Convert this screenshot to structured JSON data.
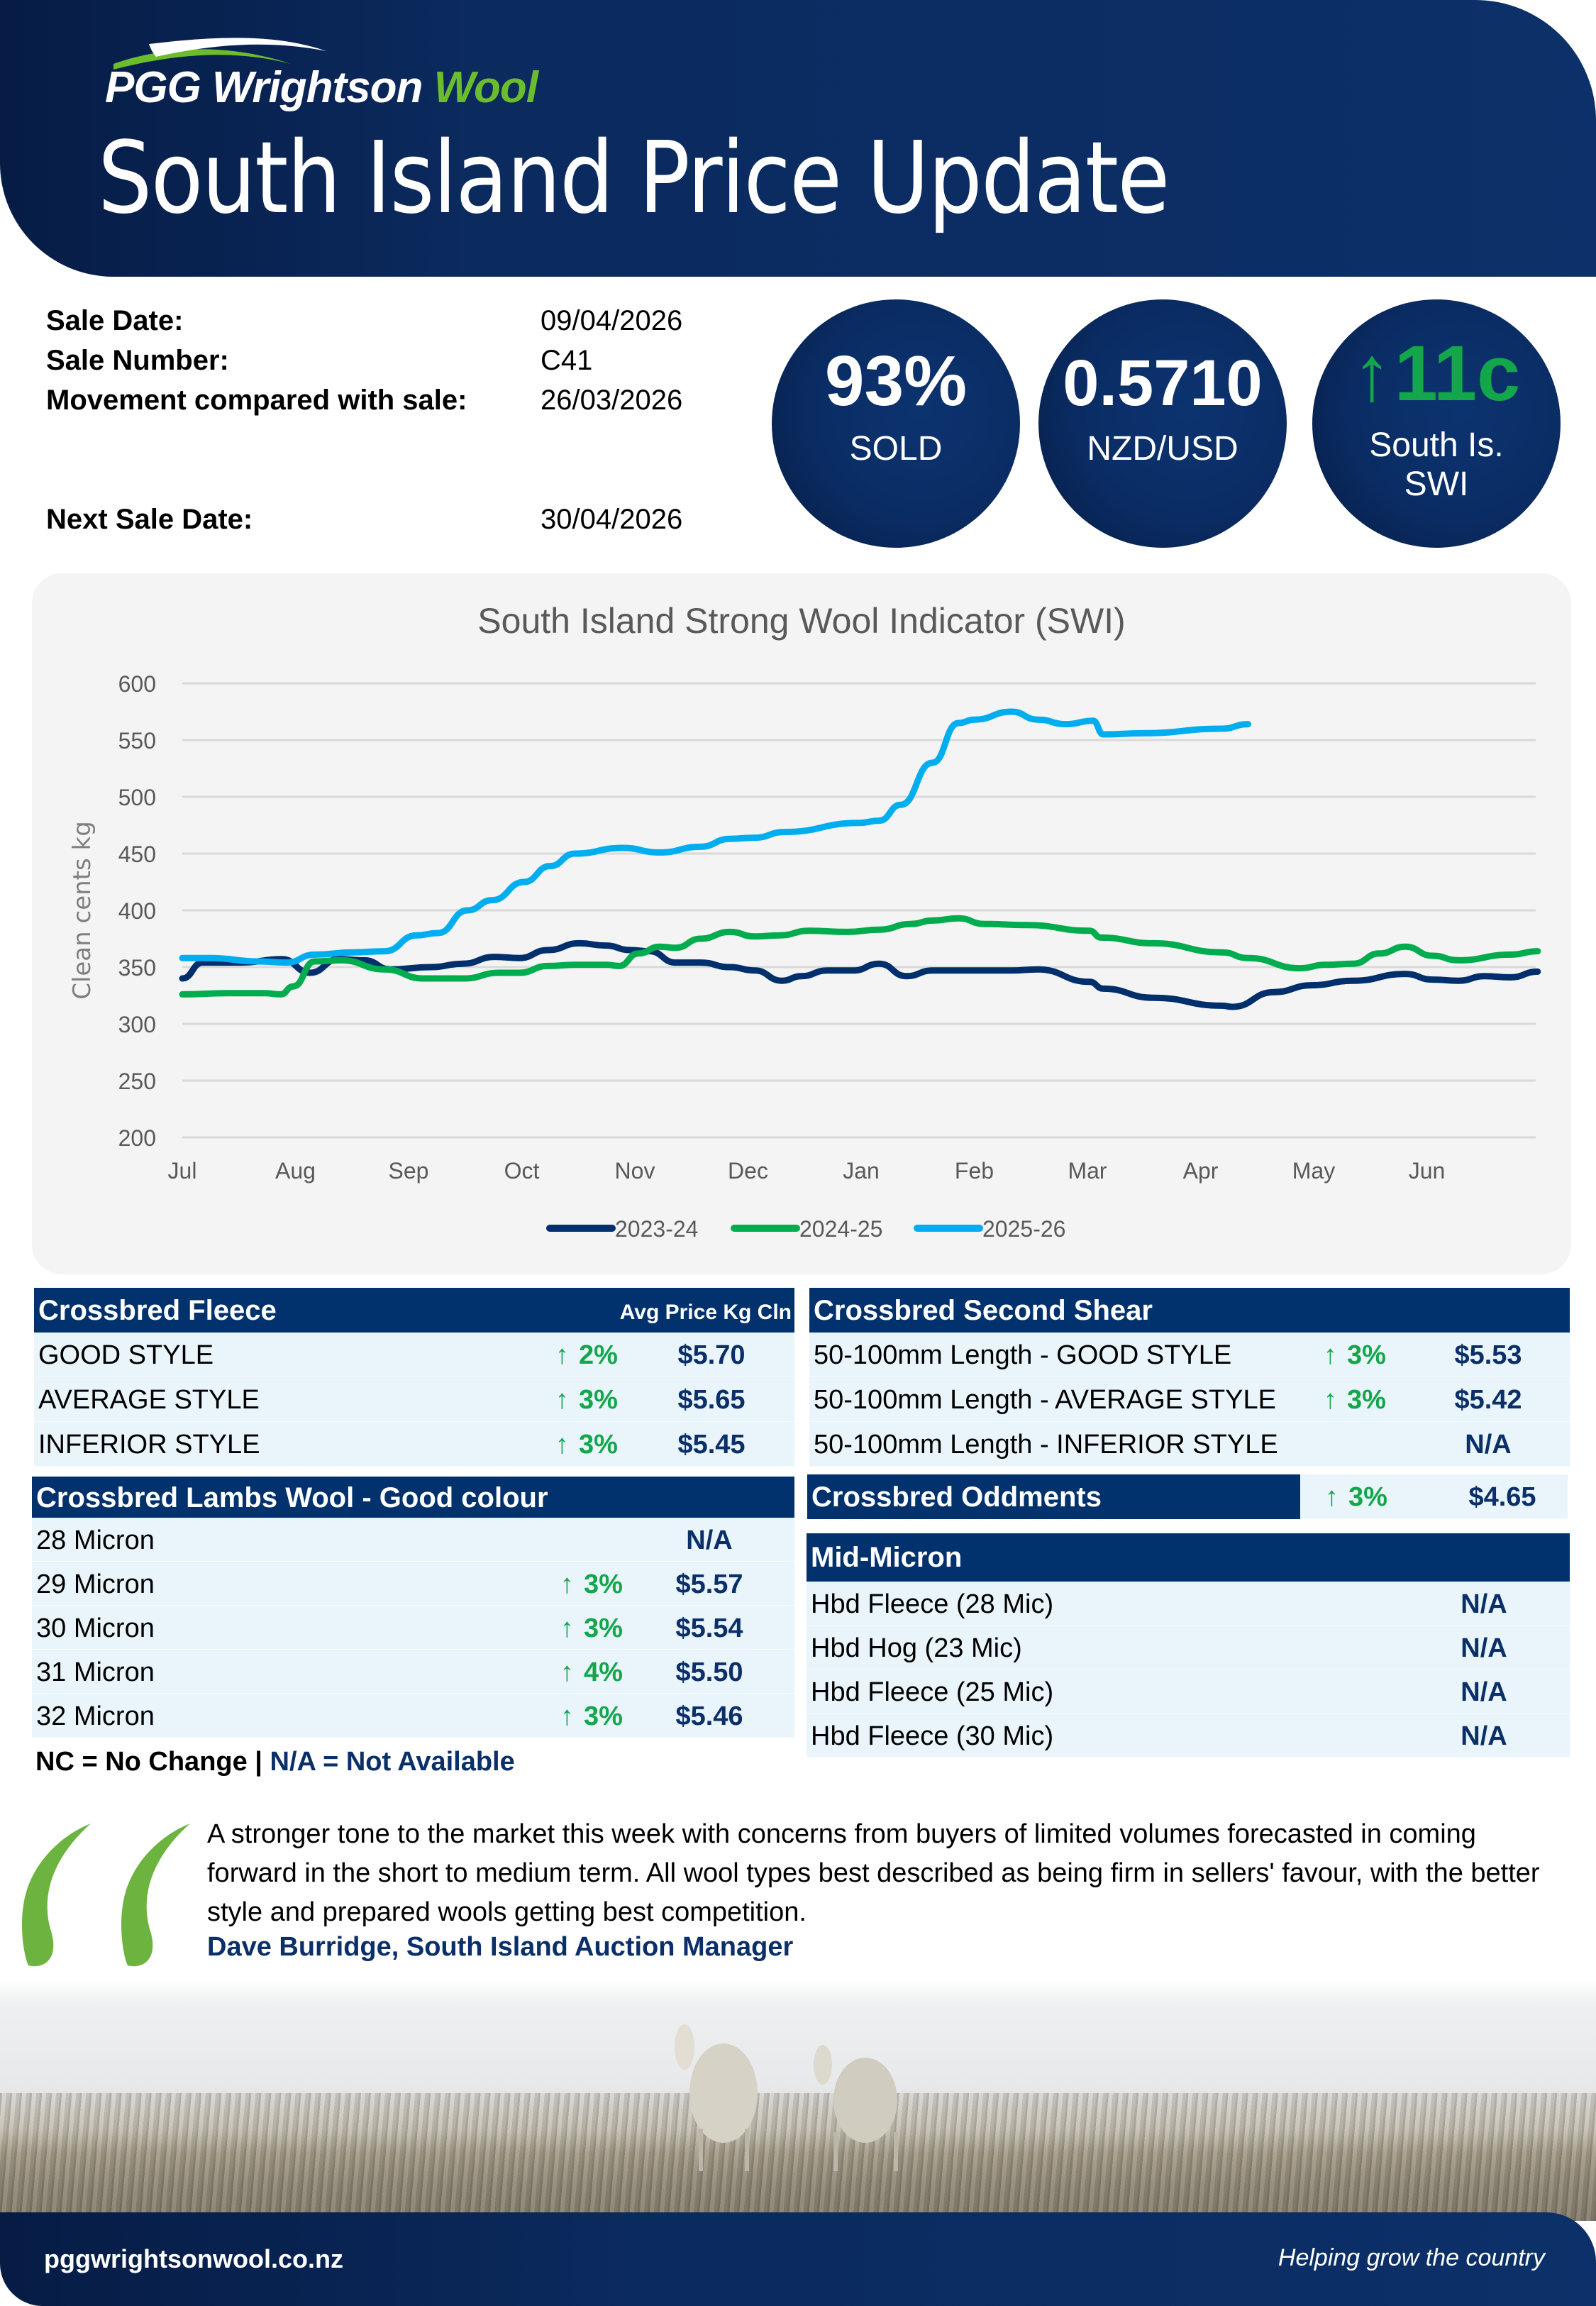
{
  "brand": {
    "logo_main": "PGG Wrightson",
    "logo_accent": "Wool",
    "colors": {
      "navy": "#02326d",
      "green": "#6cbd2e",
      "up_green": "#13a64a",
      "row_bg": "#eaf5fb"
    }
  },
  "header": {
    "title": "South Island Price Update"
  },
  "info": {
    "sale_date_label": "Sale Date:",
    "sale_date": "09/04/2026",
    "sale_number_label": "Sale Number:",
    "sale_number": "C41",
    "movement_label": "Movement compared with sale:",
    "movement_date": "26/03/2026",
    "next_sale_label": "Next Sale Date:",
    "next_sale_date": "30/04/2026"
  },
  "stats": {
    "sold": {
      "value": "93%",
      "label": "SOLD"
    },
    "fx": {
      "value": "0.5710",
      "label": "NZD/USD"
    },
    "swi": {
      "arrow": "↑",
      "value": "11c",
      "label_line1": "South Is.",
      "label_line2": "SWI"
    }
  },
  "chart_data": {
    "type": "line",
    "title": "South Island Strong Wool Indicator (SWI)",
    "xlabel": "",
    "ylabel": "Clean cents kg",
    "x_ticks": [
      "Jul",
      "Aug",
      "Sep",
      "Oct",
      "Nov",
      "Dec",
      "Jan",
      "Feb",
      "Mar",
      "Apr",
      "May",
      "Jun"
    ],
    "y_ticks": [
      200,
      250,
      300,
      350,
      400,
      450,
      500,
      550,
      600
    ],
    "ylim": [
      200,
      600
    ],
    "xlim": [
      0,
      11.95
    ],
    "x_unit": "month index (Jul = 0)",
    "grid": true,
    "legend_position": "bottom",
    "series": [
      {
        "name": "2023-24",
        "color": "#002f6c",
        "points": [
          [
            0,
            340
          ],
          [
            0.18,
            354
          ],
          [
            0.52,
            354
          ],
          [
            0.88,
            357
          ],
          [
            1.13,
            345
          ],
          [
            1.38,
            357
          ],
          [
            1.61,
            356
          ],
          [
            1.84,
            348
          ],
          [
            2.2,
            350
          ],
          [
            2.48,
            353
          ],
          [
            2.76,
            359
          ],
          [
            2.98,
            358
          ],
          [
            3.23,
            365
          ],
          [
            3.51,
            371
          ],
          [
            3.74,
            369
          ],
          [
            3.96,
            365
          ],
          [
            4.13,
            364
          ],
          [
            4.36,
            354
          ],
          [
            4.58,
            354
          ],
          [
            4.84,
            350
          ],
          [
            5.06,
            347
          ],
          [
            5.3,
            338
          ],
          [
            5.47,
            342
          ],
          [
            5.7,
            347
          ],
          [
            5.93,
            347
          ],
          [
            6.16,
            353
          ],
          [
            6.4,
            342
          ],
          [
            6.63,
            347
          ],
          [
            7.33,
            347
          ],
          [
            7.56,
            348
          ],
          [
            8.02,
            337
          ],
          [
            8.14,
            331
          ],
          [
            8.58,
            323
          ],
          [
            9.19,
            316
          ],
          [
            9.28,
            315
          ],
          [
            9.65,
            328
          ],
          [
            9.98,
            334
          ],
          [
            10.35,
            338
          ],
          [
            10.81,
            344
          ],
          [
            11.05,
            339
          ],
          [
            11.28,
            338
          ],
          [
            11.51,
            342
          ],
          [
            11.74,
            341
          ],
          [
            11.98,
            346
          ]
        ]
      },
      {
        "name": "2024-25",
        "color": "#00ac4e",
        "points": [
          [
            0,
            326
          ],
          [
            0.39,
            327
          ],
          [
            0.73,
            327
          ],
          [
            0.87,
            326
          ],
          [
            0.98,
            333
          ],
          [
            1.17,
            355
          ],
          [
            1.4,
            356
          ],
          [
            1.79,
            348
          ],
          [
            2.13,
            340
          ],
          [
            2.49,
            340
          ],
          [
            2.8,
            345
          ],
          [
            2.98,
            345
          ],
          [
            3.23,
            351
          ],
          [
            3.47,
            352
          ],
          [
            3.75,
            352
          ],
          [
            3.86,
            351
          ],
          [
            4.03,
            362
          ],
          [
            4.22,
            368
          ],
          [
            4.36,
            367
          ],
          [
            4.58,
            375
          ],
          [
            4.84,
            381
          ],
          [
            5.06,
            377
          ],
          [
            5.28,
            378
          ],
          [
            5.54,
            382
          ],
          [
            5.88,
            381
          ],
          [
            6.16,
            383
          ],
          [
            6.44,
            388
          ],
          [
            6.63,
            391
          ],
          [
            6.86,
            393
          ],
          [
            7.09,
            388
          ],
          [
            7.47,
            387
          ],
          [
            8.02,
            382
          ],
          [
            8.12,
            376
          ],
          [
            8.58,
            371
          ],
          [
            9.19,
            363
          ],
          [
            9.42,
            358
          ],
          [
            9.88,
            349
          ],
          [
            10.1,
            352
          ],
          [
            10.35,
            353
          ],
          [
            10.58,
            362
          ],
          [
            10.81,
            368
          ],
          [
            11.05,
            360
          ],
          [
            11.28,
            356
          ],
          [
            11.74,
            361
          ],
          [
            11.98,
            364
          ]
        ]
      },
      {
        "name": "2025-26",
        "color": "#00aeef",
        "points": [
          [
            0,
            358
          ],
          [
            0.25,
            358
          ],
          [
            0.67,
            355
          ],
          [
            0.92,
            354
          ],
          [
            1.17,
            361
          ],
          [
            1.51,
            363
          ],
          [
            1.79,
            364
          ],
          [
            2.07,
            378
          ],
          [
            2.26,
            380
          ],
          [
            2.52,
            400
          ],
          [
            2.74,
            409
          ],
          [
            3.02,
            425
          ],
          [
            3.25,
            439
          ],
          [
            3.47,
            450
          ],
          [
            3.89,
            455
          ],
          [
            4.22,
            451
          ],
          [
            4.58,
            456
          ],
          [
            4.84,
            463
          ],
          [
            5.06,
            464
          ],
          [
            5.32,
            469
          ],
          [
            5.98,
            477
          ],
          [
            6.16,
            479
          ],
          [
            6.35,
            493
          ],
          [
            6.63,
            530
          ],
          [
            6.86,
            565
          ],
          [
            7.0,
            568
          ],
          [
            7.33,
            575
          ],
          [
            7.56,
            568
          ],
          [
            7.81,
            564
          ],
          [
            8.05,
            567
          ],
          [
            8.14,
            555
          ],
          [
            8.49,
            556
          ],
          [
            9.19,
            560
          ],
          [
            9.42,
            564
          ]
        ]
      }
    ]
  },
  "tables": {
    "fleece": {
      "title": "Crossbred Fleece",
      "subtitle": "Avg Price Kg Cln",
      "rows": [
        {
          "name": "GOOD STYLE",
          "change": "2%",
          "direction": "up",
          "price": "$5.70"
        },
        {
          "name": "AVERAGE STYLE",
          "change": "3%",
          "direction": "up",
          "price": "$5.65"
        },
        {
          "name": "INFERIOR STYLE",
          "change": "3%",
          "direction": "up",
          "price": "$5.45"
        }
      ]
    },
    "second_shear": {
      "title": "Crossbred Second Shear",
      "rows": [
        {
          "name": "50-100mm Length - GOOD STYLE",
          "change": "3%",
          "direction": "up",
          "price": "$5.53"
        },
        {
          "name": "50-100mm Length - AVERAGE STYLE",
          "change": "3%",
          "direction": "up",
          "price": "$5.42"
        },
        {
          "name": "50-100mm Length - INFERIOR STYLE",
          "change": "",
          "direction": "",
          "price": "N/A"
        }
      ]
    },
    "lambs": {
      "title": "Crossbred Lambs Wool - Good colour",
      "rows": [
        {
          "name": "28  Micron",
          "change": "",
          "direction": "",
          "price": "N/A"
        },
        {
          "name": "29  Micron",
          "change": "3%",
          "direction": "up",
          "price": "$5.57"
        },
        {
          "name": "30  Micron",
          "change": "3%",
          "direction": "up",
          "price": "$5.54"
        },
        {
          "name": "31  Micron",
          "change": "4%",
          "direction": "up",
          "price": "$5.50"
        },
        {
          "name": "32 Micron",
          "change": "3%",
          "direction": "up",
          "price": "$5.46"
        }
      ]
    },
    "oddments": {
      "title": "Crossbred Oddments",
      "change": "3%",
      "direction": "up",
      "price": "$4.65"
    },
    "mid_micron": {
      "title": "Mid-Micron",
      "rows": [
        {
          "name": "Hbd Fleece (28 Mic)",
          "price": "N/A"
        },
        {
          "name": "Hbd Hog (23 Mic)",
          "price": "N/A"
        },
        {
          "name": "Hbd Fleece (25 Mic)",
          "price": "N/A"
        },
        {
          "name": "Hbd Fleece (30 Mic)",
          "price": "N/A"
        }
      ]
    }
  },
  "legend_note": {
    "nc": "NC = No Change | ",
    "na": "N/A = Not Available"
  },
  "up_arrow": "↑",
  "quote": {
    "text": "A stronger tone to the market this week with concerns from buyers of limited volumes forecasted in coming forward in the short to medium term. All wool types best described as being firm in sellers' favour, with the better style and prepared wools getting best competition.",
    "author": "Dave Burridge, South Island Auction Manager"
  },
  "footer": {
    "url": "pggwrightsonwool.co.nz",
    "tagline": "Helping grow the country"
  }
}
